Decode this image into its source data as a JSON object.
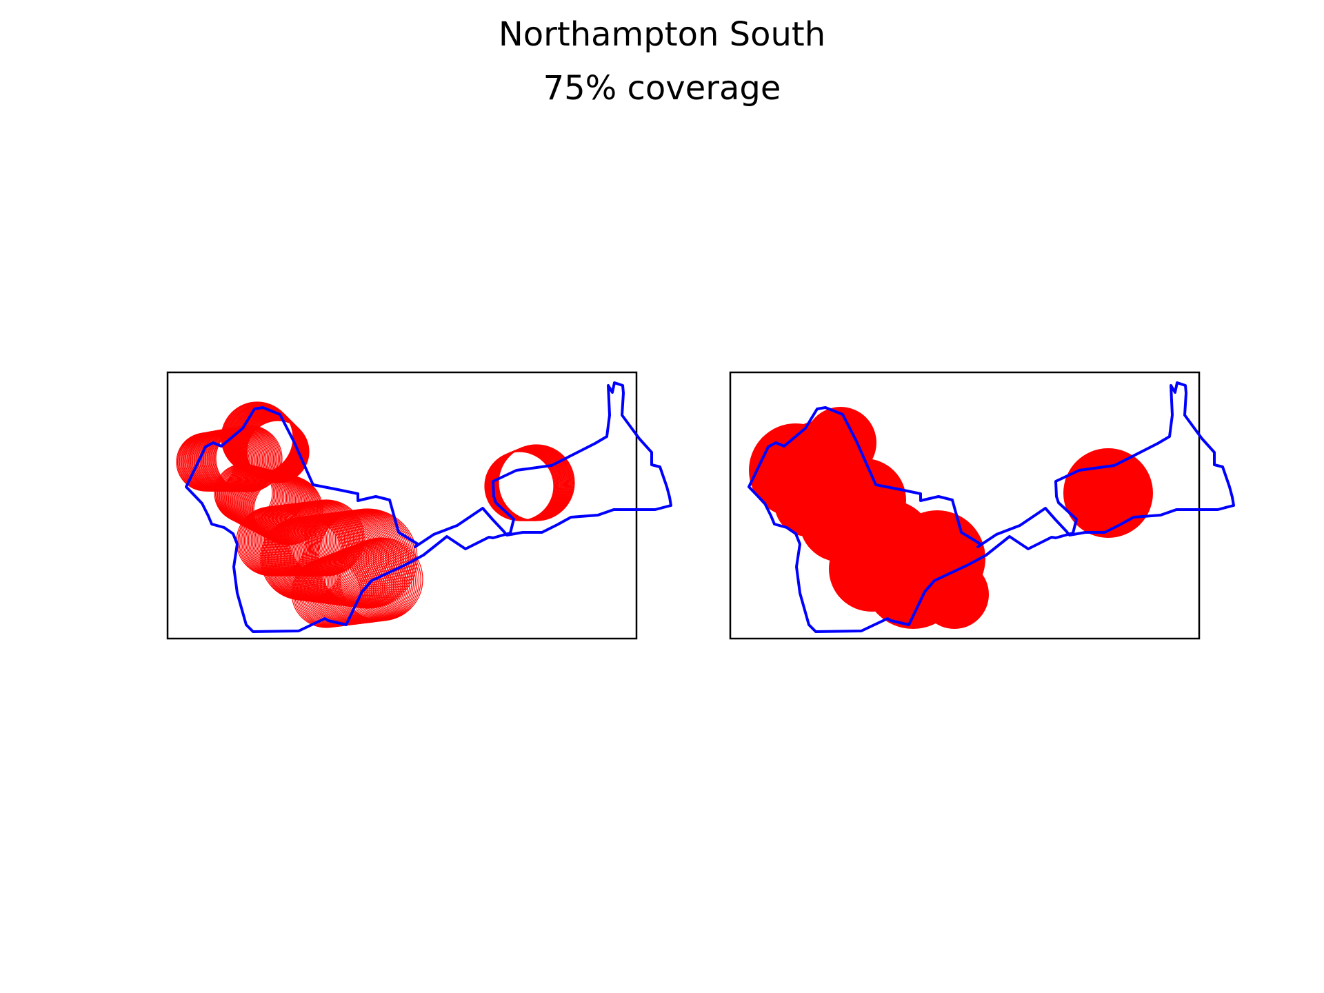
{
  "figure": {
    "title": "Northampton South",
    "subtitle": "75% coverage"
  },
  "colors": {
    "boundary": "#0000ff",
    "coverage": "#ff0000",
    "frame": "#000000",
    "background": "#ffffff"
  },
  "panels": [
    {
      "id": "left",
      "style": "ring-outlines"
    },
    {
      "id": "right",
      "style": "filled-discs"
    }
  ]
}
